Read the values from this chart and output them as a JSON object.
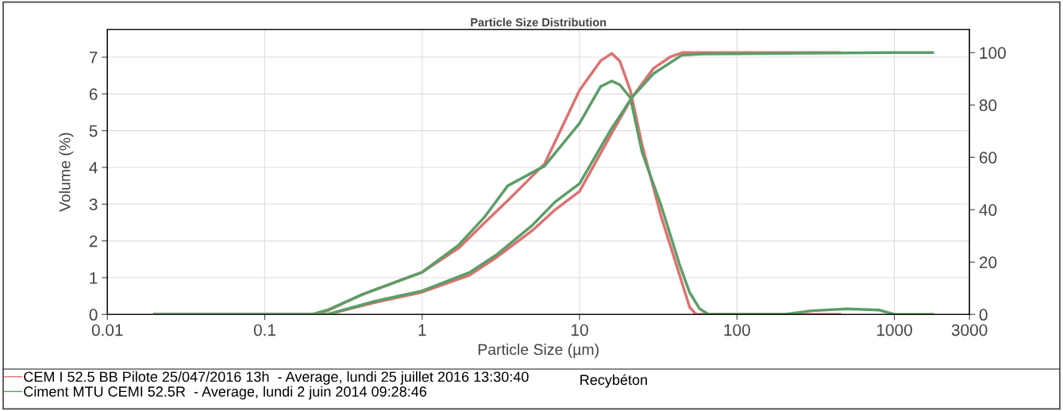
{
  "chart_data": {
    "type": "line",
    "title": "Particle Size Distribution",
    "xlabel": "Particle Size (µm)",
    "ylabel": "Volume (%)",
    "log": "x",
    "xlim": [
      0.01,
      3000
    ],
    "xticks": [
      0.01,
      0.1,
      1,
      10,
      100,
      1000,
      3000
    ],
    "ylim": [
      0,
      7.75
    ],
    "yticks": [
      0,
      1,
      2,
      3,
      4,
      5,
      6,
      7
    ],
    "y2lim": [
      0,
      108.8
    ],
    "y2ticks": [
      0,
      20,
      40,
      60,
      80,
      100
    ],
    "grid": true,
    "legend": "bottom",
    "marker": "none",
    "line_style": "solid",
    "annotations": [
      "Recybéton"
    ],
    "series": [
      {
        "name": "CEM I 52.5 BB Pilote 25/047/2016 13h  - Average, lundi 25 juillet 2016 13:30:40",
        "color": "#e07070",
        "x": [
          0.2,
          0.25,
          0.42,
          1,
          1.7,
          2.5,
          3.5,
          6,
          10,
          13.6,
          16,
          18,
          21,
          25,
          33,
          43,
          50,
          55,
          100,
          450
        ],
        "values": [
          0,
          0.1,
          0.55,
          1.15,
          1.8,
          2.5,
          3.1,
          4.1,
          6.1,
          6.9,
          7.1,
          6.9,
          6.1,
          4.6,
          2.66,
          1.1,
          0.2,
          0,
          0,
          0
        ]
      },
      {
        "name": "Ciment MTU CEMI 52.5R  - Average, lundi 2 juin 2014 09:28:46",
        "color": "#5a9e68",
        "x": [
          0.02,
          0.1,
          0.2,
          0.25,
          0.42,
          1,
          1.7,
          2.5,
          3.5,
          6,
          10,
          13.6,
          16,
          18,
          21,
          25,
          33,
          43,
          50,
          58,
          66,
          200,
          300,
          500,
          800,
          1000,
          1750
        ],
        "values": [
          0,
          0,
          0,
          0.12,
          0.55,
          1.15,
          1.88,
          2.66,
          3.5,
          4.04,
          5.2,
          6.2,
          6.35,
          6.25,
          5.9,
          4.4,
          2.96,
          1.38,
          0.6,
          0.15,
          0,
          0,
          0.1,
          0.15,
          0.12,
          0,
          0
        ]
      },
      {
        "color": "#e07070",
        "axis": "y2",
        "x": [
          0.02,
          0.2,
          0.25,
          0.5,
          1,
          2,
          3,
          5,
          7,
          10,
          15.6,
          21.6,
          29.5,
          38,
          45,
          100,
          450
        ],
        "values": [
          0,
          0,
          0,
          4.5,
          8.5,
          15,
          22,
          32,
          40,
          47,
          68,
          83,
          94,
          98.5,
          100,
          100,
          100
        ]
      },
      {
        "color": "#5a9e68",
        "axis": "y2",
        "x": [
          0.02,
          0.2,
          0.25,
          0.5,
          1,
          2,
          3,
          5,
          7,
          10,
          15.6,
          21.6,
          29.5,
          44.6,
          60,
          100,
          300,
          1000,
          1750
        ],
        "values": [
          0,
          0,
          0,
          5,
          9,
          16,
          23,
          34,
          43,
          50,
          70,
          83,
          92,
          99,
          99.5,
          99.6,
          99.8,
          100,
          100
        ]
      }
    ]
  }
}
